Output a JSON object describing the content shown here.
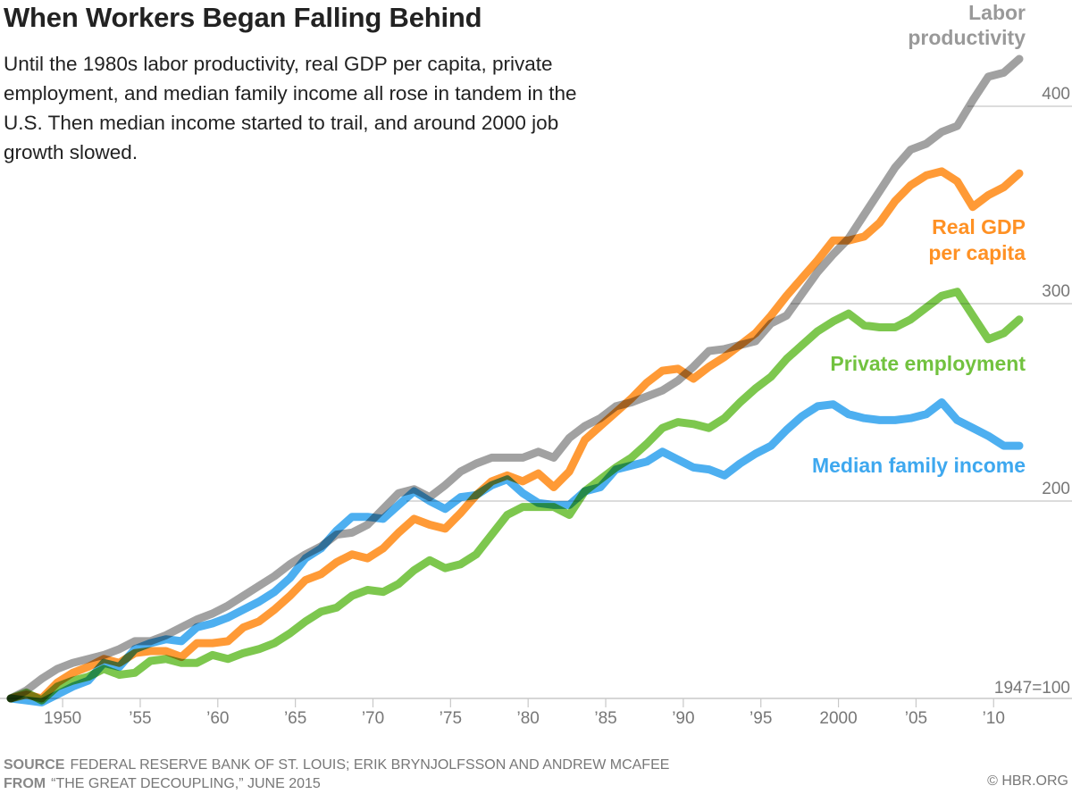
{
  "title": "When Workers Began Falling Behind",
  "subtitle": "Until the 1980s labor productivity, real GDP per capita, private employment, and median family income all rose in tandem in the U.S. Then median income started to trail, and around 2000 job growth slowed.",
  "footer": {
    "source_label": "SOURCE",
    "source_text": "FEDERAL RESERVE BANK OF ST. LOUIS; ERIK BRYNJOLFSSON AND ANDREW MCAFEE",
    "from_label": "FROM",
    "from_text": "“THE GREAT DECOUPLING,” JUNE 2015",
    "copyright": "© HBR.ORG"
  },
  "chart_data": {
    "type": "line",
    "base_note": "1947=100",
    "x": [
      1947,
      1948,
      1949,
      1950,
      1951,
      1952,
      1953,
      1954,
      1955,
      1956,
      1957,
      1958,
      1959,
      1960,
      1961,
      1962,
      1963,
      1964,
      1965,
      1966,
      1967,
      1968,
      1969,
      1970,
      1971,
      1972,
      1973,
      1974,
      1975,
      1976,
      1977,
      1978,
      1979,
      1980,
      1981,
      1982,
      1983,
      1984,
      1985,
      1986,
      1987,
      1988,
      1989,
      1990,
      1991,
      1992,
      1993,
      1994,
      1995,
      1996,
      1997,
      1998,
      1999,
      2000,
      2001,
      2002,
      2003,
      2004,
      2005,
      2006,
      2007,
      2008,
      2009,
      2010,
      2011,
      2012
    ],
    "xlim": [
      1947,
      2012
    ],
    "ylim": [
      100,
      430
    ],
    "x_ticks": [
      {
        "value": 1950,
        "label": "1950"
      },
      {
        "value": 1955,
        "label": "’55"
      },
      {
        "value": 1960,
        "label": "’60"
      },
      {
        "value": 1965,
        "label": "’65"
      },
      {
        "value": 1970,
        "label": "’70"
      },
      {
        "value": 1975,
        "label": "’75"
      },
      {
        "value": 1980,
        "label": "’80"
      },
      {
        "value": 1985,
        "label": "’85"
      },
      {
        "value": 1990,
        "label": "’90"
      },
      {
        "value": 1995,
        "label": "’95"
      },
      {
        "value": 2000,
        "label": "2000"
      },
      {
        "value": 2005,
        "label": "’05"
      },
      {
        "value": 2010,
        "label": "’10"
      }
    ],
    "y_ticks": [
      {
        "value": 200,
        "label": "200"
      },
      {
        "value": 300,
        "label": "300"
      },
      {
        "value": 400,
        "label": "400"
      }
    ],
    "series": [
      {
        "name_lines": [
          "Labor",
          "productivity"
        ],
        "color": "#999999",
        "values": [
          100,
          104,
          110,
          115,
          118,
          120,
          122,
          125,
          129,
          129,
          132,
          136,
          140,
          143,
          147,
          152,
          157,
          162,
          168,
          173,
          177,
          183,
          184,
          188,
          196,
          204,
          206,
          202,
          208,
          215,
          219,
          222,
          222,
          222,
          225,
          222,
          232,
          238,
          242,
          248,
          250,
          253,
          256,
          261,
          268,
          276,
          277,
          279,
          281,
          290,
          294,
          305,
          316,
          325,
          333,
          345,
          357,
          369,
          378,
          381,
          387,
          390,
          403,
          415,
          417,
          424
        ]
      },
      {
        "name_lines": [
          "Real GDP",
          "per capita"
        ],
        "color": "#FF9124",
        "values": [
          100,
          102,
          100,
          108,
          113,
          116,
          120,
          118,
          123,
          124,
          124,
          121,
          128,
          128,
          129,
          136,
          139,
          145,
          152,
          160,
          163,
          169,
          173,
          171,
          176,
          184,
          191,
          188,
          186,
          194,
          203,
          210,
          213,
          210,
          214,
          207,
          215,
          231,
          238,
          245,
          252,
          260,
          266,
          267,
          262,
          268,
          273,
          279,
          285,
          294,
          304,
          313,
          322,
          332,
          332,
          334,
          341,
          352,
          360,
          365,
          367,
          362,
          349,
          355,
          359,
          366
        ]
      },
      {
        "name_lines": [
          "Private employment"
        ],
        "color": "#72C23F",
        "values": [
          100,
          103,
          99,
          106,
          109,
          111,
          115,
          112,
          113,
          119,
          120,
          118,
          118,
          122,
          120,
          123,
          125,
          128,
          133,
          139,
          144,
          146,
          152,
          155,
          154,
          158,
          165,
          170,
          166,
          168,
          173,
          183,
          193,
          197,
          197,
          197,
          193,
          205,
          211,
          217,
          222,
          229,
          237,
          240,
          239,
          237,
          242,
          250,
          257,
          263,
          272,
          279,
          286,
          291,
          295,
          289,
          288,
          288,
          292,
          298,
          304,
          306,
          294,
          282,
          285,
          292
        ]
      },
      {
        "name_lines": [
          "Median family income"
        ],
        "color": "#3EA8EF",
        "values": [
          100,
          99,
          98,
          102,
          106,
          109,
          118,
          116,
          125,
          128,
          130,
          129,
          136,
          138,
          141,
          145,
          149,
          154,
          161,
          171,
          176,
          185,
          192,
          192,
          191,
          198,
          205,
          200,
          196,
          202,
          203,
          208,
          211,
          204,
          199,
          198,
          198,
          205,
          207,
          216,
          218,
          220,
          225,
          221,
          217,
          216,
          213,
          219,
          224,
          228,
          236,
          243,
          248,
          249,
          244,
          242,
          241,
          241,
          242,
          244,
          250,
          241,
          237,
          233,
          228,
          228
        ]
      }
    ]
  }
}
